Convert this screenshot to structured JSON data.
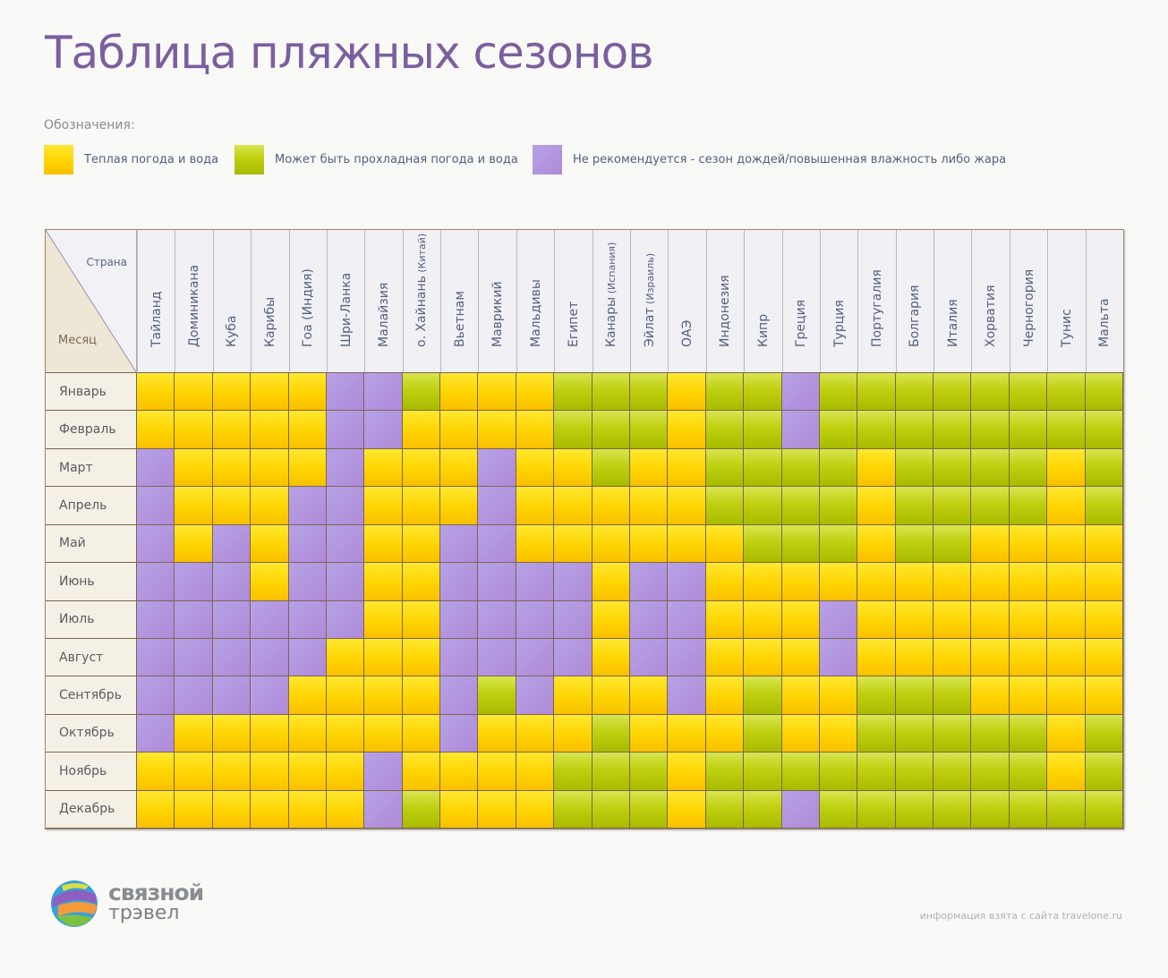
{
  "title": "Таблица пляжных сезонов",
  "legend": {
    "title": "Обозначения:",
    "items": [
      {
        "code": "Y",
        "label": "Теплая погода и вода",
        "color": "#ffd400"
      },
      {
        "code": "G",
        "label": "Может быть прохладная погода и вода",
        "color": "#bfd010"
      },
      {
        "code": "P",
        "label": "Не рекомендуется - сезон дождей/повышенная влажность либо жара",
        "color": "#b497de"
      }
    ]
  },
  "table": {
    "corner_country": "Страна",
    "corner_month": "Месяц",
    "countries": [
      {
        "name": "Тайланд",
        "note": ""
      },
      {
        "name": "Доминикана",
        "note": ""
      },
      {
        "name": "Куба",
        "note": ""
      },
      {
        "name": "Карибы",
        "note": ""
      },
      {
        "name": "Гоа (Индия)",
        "note": ""
      },
      {
        "name": "Шри-Ланка",
        "note": ""
      },
      {
        "name": "Малайзия",
        "note": ""
      },
      {
        "name": "о. Хайнань",
        "note": "(Китай)"
      },
      {
        "name": "Вьетнам",
        "note": ""
      },
      {
        "name": "Маврикий",
        "note": ""
      },
      {
        "name": "Мальдивы",
        "note": ""
      },
      {
        "name": "Египет",
        "note": ""
      },
      {
        "name": "Канары",
        "note": "(Испания)"
      },
      {
        "name": "Эйлат",
        "note": "(Израиль)"
      },
      {
        "name": "ОАЭ",
        "note": ""
      },
      {
        "name": "Индонезия",
        "note": ""
      },
      {
        "name": "Кипр",
        "note": ""
      },
      {
        "name": "Греция",
        "note": ""
      },
      {
        "name": "Турция",
        "note": ""
      },
      {
        "name": "Португалия",
        "note": ""
      },
      {
        "name": "Болгария",
        "note": ""
      },
      {
        "name": "Италия",
        "note": ""
      },
      {
        "name": "Хорватия",
        "note": ""
      },
      {
        "name": "Черногория",
        "note": ""
      },
      {
        "name": "Тунис",
        "note": ""
      },
      {
        "name": "Мальта",
        "note": ""
      }
    ],
    "months": [
      "Январь",
      "Февраль",
      "Март",
      "Апрель",
      "Май",
      "Июнь",
      "Июль",
      "Август",
      "Сентябрь",
      "Октябрь",
      "Ноябрь",
      "Декабрь"
    ],
    "rows": [
      "YYYYYPPGYYYGGGYGGPGGGGGGGG",
      "YYYYYPPYYYYGGGYGGPGGGGGGGG",
      "PYYYYPYYYPYYGYYGGGGYGGGGYG",
      "PYYYPPYYYPYYYYYGGGGYGGGGYG",
      "PYPYPPYYPPYYYYYYGGGYGGYYYY",
      "PPPYPPYYPPPPYPPYYYYYYYYYYY",
      "PPPPPPYYPPPPYPPYYYPYYYYYYY",
      "PPPPPYYYPPPPYPPYYYPYYYYYYY",
      "PPPPYYYYPGPYYYPYGYYGGGYYYY",
      "PYYYYYYYPYYYGYYYGYYGGGGGYG",
      "YYYYYYPYYYYGGGYGGGGGGGGGYG",
      "YYYYYYPGYYYGGGYGGPGGGGGGGG"
    ]
  },
  "logo": {
    "line1": "связной",
    "line2": "трэвел"
  },
  "source": "информация взята с сайта travelone.ru"
}
